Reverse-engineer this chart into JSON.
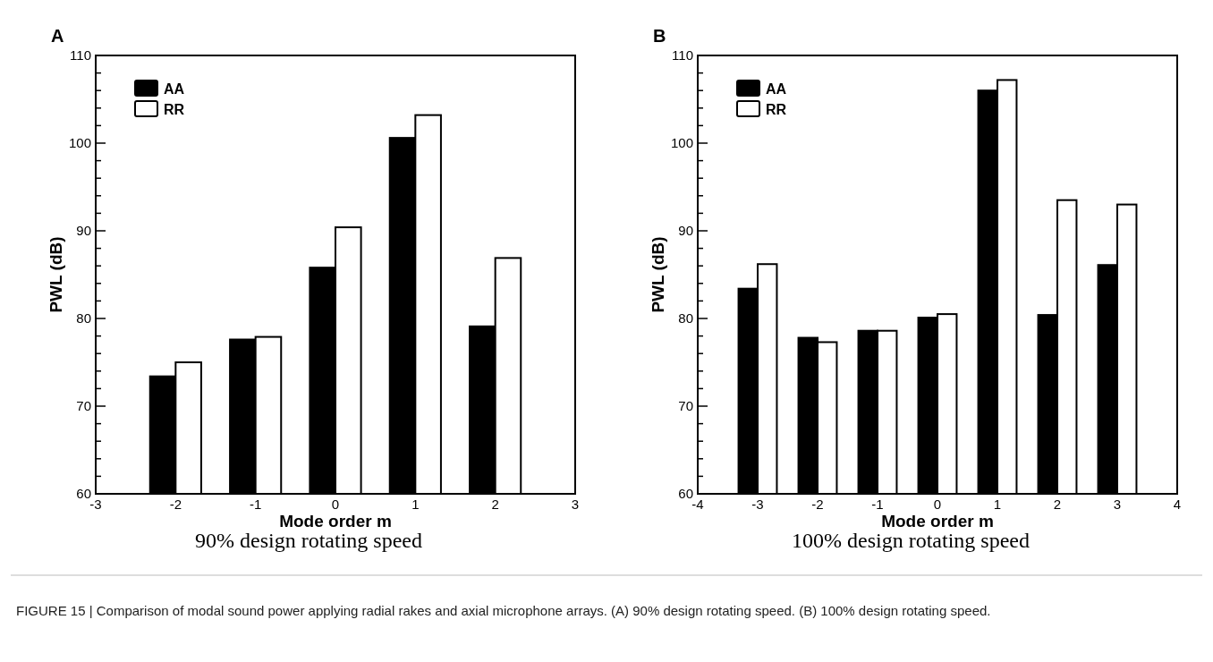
{
  "chart_data": [
    {
      "type": "bar",
      "title": "A",
      "subtitle": "90% design rotating speed",
      "xlabel": "Mode order m",
      "ylabel": "PWL (dB)",
      "x": [
        -2,
        -1,
        0,
        1,
        2
      ],
      "xlim": [
        -3,
        3
      ],
      "xticks": [
        -3,
        -2,
        -1,
        0,
        1,
        2,
        3
      ],
      "ylim": [
        60,
        110
      ],
      "yticks": [
        60,
        {
          "value": 62,
          "label": null
        },
        {
          "value": 64,
          "label": null
        },
        {
          "value": 66,
          "label": null
        },
        {
          "value": 68,
          "label": null
        },
        70,
        {
          "value": 72,
          "label": null
        },
        {
          "value": 74,
          "label": null
        },
        {
          "value": 76,
          "label": null
        },
        {
          "value": 78,
          "label": null
        },
        80,
        {
          "value": 82,
          "label": null
        },
        {
          "value": 84,
          "label": null
        },
        {
          "value": 86,
          "label": null
        },
        {
          "value": 88,
          "label": null
        },
        90,
        {
          "value": 92,
          "label": null
        },
        {
          "value": 94,
          "label": null
        },
        {
          "value": 96,
          "label": null
        },
        {
          "value": 98,
          "label": null
        },
        100,
        {
          "value": 102,
          "label": null
        },
        {
          "value": 104,
          "label": null
        },
        {
          "value": 106,
          "label": null
        },
        {
          "value": 108,
          "label": null
        },
        110
      ],
      "legend": "top left",
      "grid": false,
      "series": [
        {
          "name": "AA",
          "color": "#000000",
          "values": [
            73.4,
            77.6,
            85.8,
            100.6,
            79.1
          ]
        },
        {
          "name": "RR",
          "color": "#ffffff",
          "values": [
            75.0,
            77.9,
            90.4,
            103.2,
            86.9
          ]
        }
      ],
      "annotations": [
        "FIGURE 15 | Comparison of modal sound power applying radial rakes and axial microphone arrays. (A) 90% design rotating speed. (B) 100% design rotating speed."
      ]
    },
    {
      "type": "bar",
      "title": "B",
      "subtitle": "100% design rotating speed",
      "xlabel": "Mode order m",
      "ylabel": "PWL (dB)",
      "x": [
        -3,
        -2,
        -1,
        0,
        1,
        2,
        3
      ],
      "xlim": [
        -4,
        4
      ],
      "xticks": [
        -4,
        -3,
        -2,
        -1,
        0,
        1,
        2,
        3,
        4
      ],
      "ylim": [
        60,
        110
      ],
      "yticks": [
        60,
        {
          "value": 62,
          "label": null
        },
        {
          "value": 64,
          "label": null
        },
        {
          "value": 66,
          "label": null
        },
        {
          "value": 68,
          "label": null
        },
        70,
        {
          "value": 72,
          "label": null
        },
        {
          "value": 74,
          "label": null
        },
        {
          "value": 76,
          "label": null
        },
        {
          "value": 78,
          "label": null
        },
        80,
        {
          "value": 82,
          "label": null
        },
        {
          "value": 84,
          "label": null
        },
        {
          "value": 86,
          "label": null
        },
        {
          "value": 88,
          "label": null
        },
        90,
        {
          "value": 92,
          "label": null
        },
        {
          "value": 94,
          "label": null
        },
        {
          "value": 96,
          "label": null
        },
        {
          "value": 98,
          "label": null
        },
        100,
        {
          "value": 102,
          "label": null
        },
        {
          "value": 104,
          "label": null
        },
        {
          "value": 106,
          "label": null
        },
        {
          "value": 108,
          "label": null
        },
        110
      ],
      "legend": "top left",
      "grid": false,
      "series": [
        {
          "name": "AA",
          "color": "#000000",
          "values": [
            83.4,
            77.8,
            78.6,
            80.1,
            106.0,
            80.4,
            86.1
          ]
        },
        {
          "name": "RR",
          "color": "#ffffff",
          "values": [
            86.2,
            77.3,
            78.6,
            80.5,
            107.2,
            93.5,
            93.0
          ]
        }
      ]
    }
  ]
}
